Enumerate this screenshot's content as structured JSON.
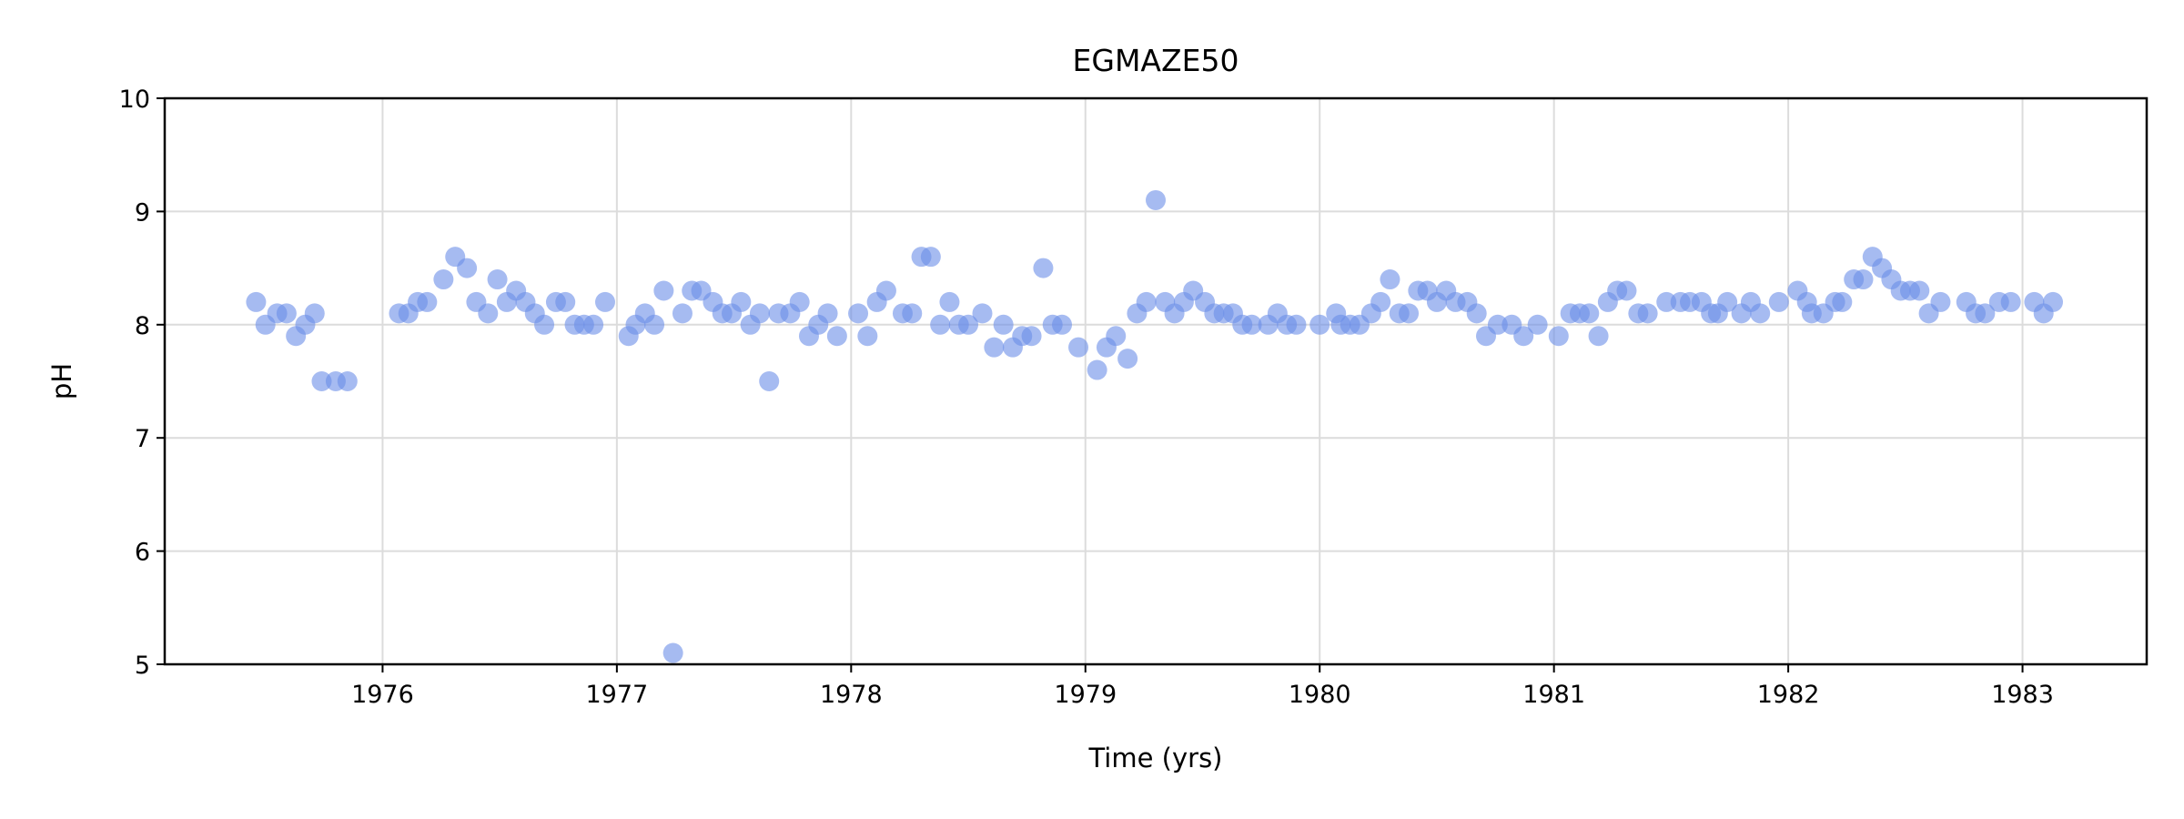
{
  "chart_data": {
    "type": "scatter",
    "title": "EGMAZE50",
    "xlabel": "Time (yrs)",
    "ylabel": "pH",
    "xlim": [
      1975.07,
      1983.53
    ],
    "ylim": [
      5,
      10
    ],
    "xticks": [
      1976,
      1977,
      1978,
      1979,
      1980,
      1981,
      1982,
      1983
    ],
    "yticks": [
      5,
      6,
      7,
      8,
      9,
      10
    ],
    "grid": true,
    "marker_color": "#6b8ee8",
    "marker_opacity": 0.6,
    "series": [
      {
        "x": [
          1975.46,
          1975.5,
          1975.55,
          1975.59,
          1975.63,
          1975.67,
          1975.71,
          1975.74,
          1975.8,
          1975.85,
          1976.07,
          1976.11,
          1976.15,
          1976.19,
          1976.26,
          1976.31,
          1976.36,
          1976.4,
          1976.45,
          1976.49,
          1976.53,
          1976.57,
          1976.61,
          1976.65,
          1976.69,
          1976.74,
          1976.78,
          1976.82,
          1976.86,
          1976.9,
          1976.95,
          1977.05,
          1977.08,
          1977.12,
          1977.16,
          1977.2,
          1977.24,
          1977.28,
          1977.32,
          1977.36,
          1977.41,
          1977.45,
          1977.49,
          1977.53,
          1977.57,
          1977.61,
          1977.65,
          1977.69,
          1977.74,
          1977.78,
          1977.82,
          1977.86,
          1977.9,
          1977.94,
          1978.03,
          1978.07,
          1978.11,
          1978.15,
          1978.22,
          1978.26,
          1978.3,
          1978.34,
          1978.38,
          1978.42,
          1978.46,
          1978.5,
          1978.56,
          1978.61,
          1978.65,
          1978.69,
          1978.73,
          1978.77,
          1978.82,
          1978.86,
          1978.9,
          1978.97,
          1979.05,
          1979.09,
          1979.13,
          1979.18,
          1979.22,
          1979.26,
          1979.3,
          1979.34,
          1979.38,
          1979.42,
          1979.46,
          1979.51,
          1979.55,
          1979.59,
          1979.63,
          1979.67,
          1979.71,
          1979.78,
          1979.82,
          1979.86,
          1979.9,
          1980.0,
          1980.07,
          1980.09,
          1980.13,
          1980.17,
          1980.22,
          1980.26,
          1980.3,
          1980.34,
          1980.38,
          1980.42,
          1980.46,
          1980.5,
          1980.54,
          1980.58,
          1980.63,
          1980.67,
          1980.71,
          1980.76,
          1980.82,
          1980.87,
          1980.93,
          1981.02,
          1981.07,
          1981.11,
          1981.15,
          1981.19,
          1981.23,
          1981.27,
          1981.31,
          1981.36,
          1981.4,
          1981.48,
          1981.54,
          1981.58,
          1981.63,
          1981.67,
          1981.7,
          1981.74,
          1981.8,
          1981.84,
          1981.88,
          1981.96,
          1982.04,
          1982.08,
          1982.1,
          1982.15,
          1982.2,
          1982.23,
          1982.28,
          1982.32,
          1982.36,
          1982.4,
          1982.44,
          1982.48,
          1982.52,
          1982.56,
          1982.6,
          1982.65,
          1982.76,
          1982.8,
          1982.84,
          1982.9,
          1982.95,
          1983.05,
          1983.09,
          1983.13
        ],
        "y": [
          8.2,
          8.0,
          8.1,
          8.1,
          7.9,
          8.0,
          8.1,
          7.5,
          7.5,
          7.5,
          8.1,
          8.1,
          8.2,
          8.2,
          8.4,
          8.6,
          8.5,
          8.2,
          8.1,
          8.4,
          8.2,
          8.3,
          8.2,
          8.1,
          8.0,
          8.2,
          8.2,
          8.0,
          8.0,
          8.0,
          8.2,
          7.9,
          8.0,
          8.1,
          8.0,
          8.3,
          5.1,
          8.1,
          8.3,
          8.3,
          8.2,
          8.1,
          8.1,
          8.2,
          8.0,
          8.1,
          7.5,
          8.1,
          8.1,
          8.2,
          7.9,
          8.0,
          8.1,
          7.9,
          8.1,
          7.9,
          8.2,
          8.3,
          8.1,
          8.1,
          8.6,
          8.6,
          8.0,
          8.2,
          8.0,
          8.0,
          8.1,
          7.8,
          8.0,
          7.8,
          7.9,
          7.9,
          8.5,
          8.0,
          8.0,
          7.8,
          7.6,
          7.8,
          7.9,
          7.7,
          8.1,
          8.2,
          9.1,
          8.2,
          8.1,
          8.2,
          8.3,
          8.2,
          8.1,
          8.1,
          8.1,
          8.0,
          8.0,
          8.0,
          8.1,
          8.0,
          8.0,
          8.0,
          8.1,
          8.0,
          8.0,
          8.0,
          8.1,
          8.2,
          8.4,
          8.1,
          8.1,
          8.3,
          8.3,
          8.2,
          8.3,
          8.2,
          8.2,
          8.1,
          7.9,
          8.0,
          8.0,
          7.9,
          8.0,
          7.9,
          8.1,
          8.1,
          8.1,
          7.9,
          8.2,
          8.3,
          8.3,
          8.1,
          8.1,
          8.2,
          8.2,
          8.2,
          8.2,
          8.1,
          8.1,
          8.2,
          8.1,
          8.2,
          8.1,
          8.2,
          8.3,
          8.2,
          8.1,
          8.1,
          8.2,
          8.2,
          8.4,
          8.4,
          8.6,
          8.5,
          8.4,
          8.3,
          8.3,
          8.3,
          8.1,
          8.2,
          8.2,
          8.1,
          8.1,
          8.2,
          8.2,
          8.2,
          8.1,
          8.2
        ]
      }
    ]
  }
}
